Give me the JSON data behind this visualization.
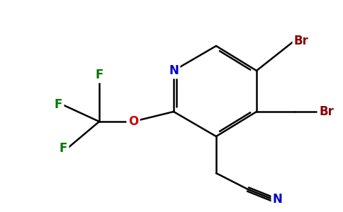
{
  "background_color": "#ffffff",
  "bond_color": "#000000",
  "atom_colors": {
    "N_ring": "#0000cc",
    "N_cn": "#0000cc",
    "O": "#cc0000",
    "F": "#007700",
    "Br": "#8b0000",
    "C": "#000000"
  },
  "figsize": [
    4.84,
    3.0
  ],
  "dpi": 100,
  "lw": 1.8,
  "font_size": 12
}
